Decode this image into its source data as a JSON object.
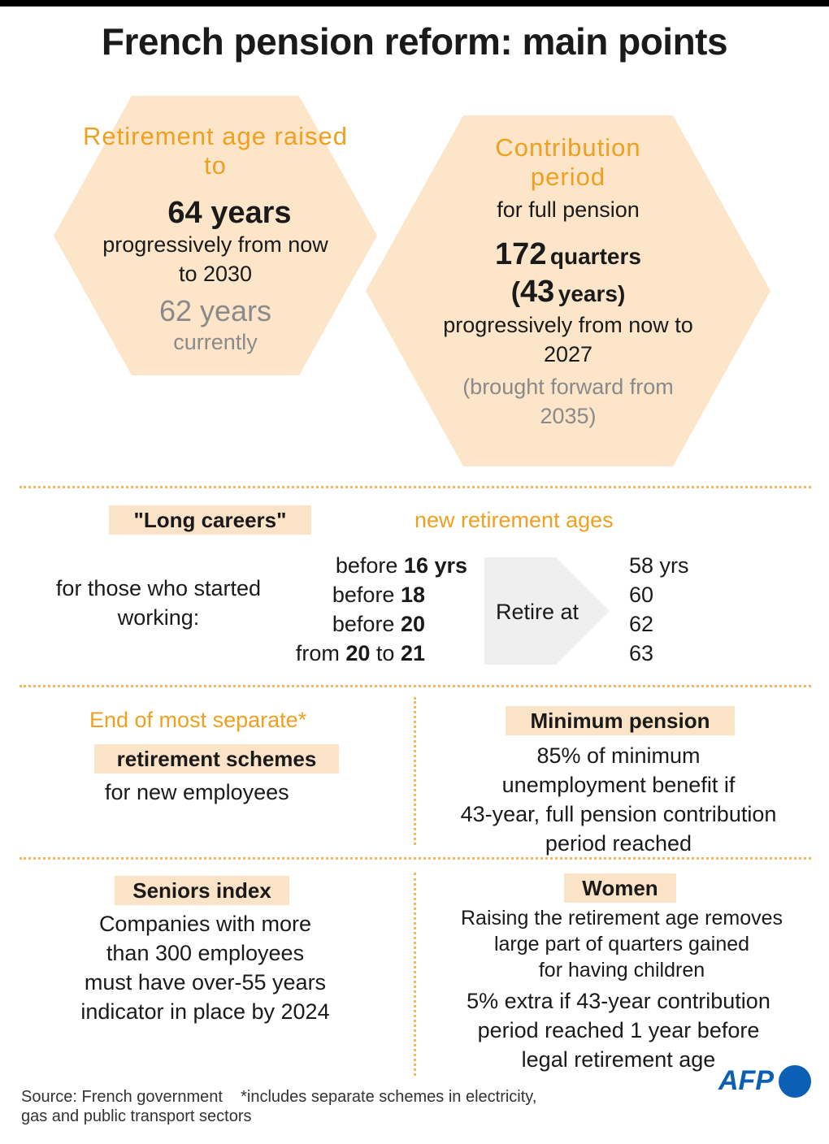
{
  "title": "French pension reform: main points",
  "retirement": {
    "heading": "Retirement age raised to",
    "value": "64 years",
    "detail": "progressively from now to 2030",
    "current_value": "62 years",
    "current_label": "currently"
  },
  "contribution": {
    "heading": "Contribution period",
    "sub": "for full pension",
    "quarters_num": "172",
    "quarters_word": "quarters",
    "years_open": "(",
    "years_num": "43",
    "years_word": "years)",
    "detail": "progressively from now to 2027",
    "note": "(brought forward from 2035)"
  },
  "long_careers": {
    "tag": "\"Long careers\"",
    "new_ages_label": "new retirement ages",
    "started_label": "for those who started working:",
    "arrow_label": "Retire at",
    "rows": [
      {
        "pre": "before ",
        "bold1": "16 yrs",
        "mid": "",
        "bold2": "",
        "age": "58 yrs"
      },
      {
        "pre": "before ",
        "bold1": "18",
        "mid": "",
        "bold2": "",
        "age": "60"
      },
      {
        "pre": "before ",
        "bold1": "20",
        "mid": "",
        "bold2": "",
        "age": "62"
      },
      {
        "pre": "from ",
        "bold1": "20",
        "mid": " to ",
        "bold2": "21",
        "age": "63"
      }
    ]
  },
  "separate": {
    "heading": "End of most separate*",
    "tag": "retirement schemes",
    "detail": "for new employees"
  },
  "minimum": {
    "tag": "Minimum pension",
    "lines": [
      "85% of minimum",
      "unemployment benefit if",
      "43-year, full pension contribution",
      "period reached"
    ]
  },
  "seniors": {
    "tag": "Seniors index",
    "lines": [
      "Companies with more",
      "than 300 employees",
      "must have over-55 years",
      "indicator in place by 2024"
    ]
  },
  "women": {
    "tag": "Women",
    "small_lines": [
      "Raising the retirement age removes",
      "large part of quarters gained",
      "for having children"
    ],
    "lines": [
      "5% extra if 43-year contribution",
      "period reached 1 year before",
      "legal retirement age"
    ]
  },
  "footer": {
    "source": "Source: French government",
    "note_line1": "*includes separate schemes in electricity,",
    "note_line2": "gas and public transport sectors",
    "logo": "AFP"
  },
  "colors": {
    "accent": "#f0a020",
    "tag_bg": "#fbe3c7",
    "hex_bg": "#fce5c8",
    "logo_blue": "#0b5fb5"
  }
}
